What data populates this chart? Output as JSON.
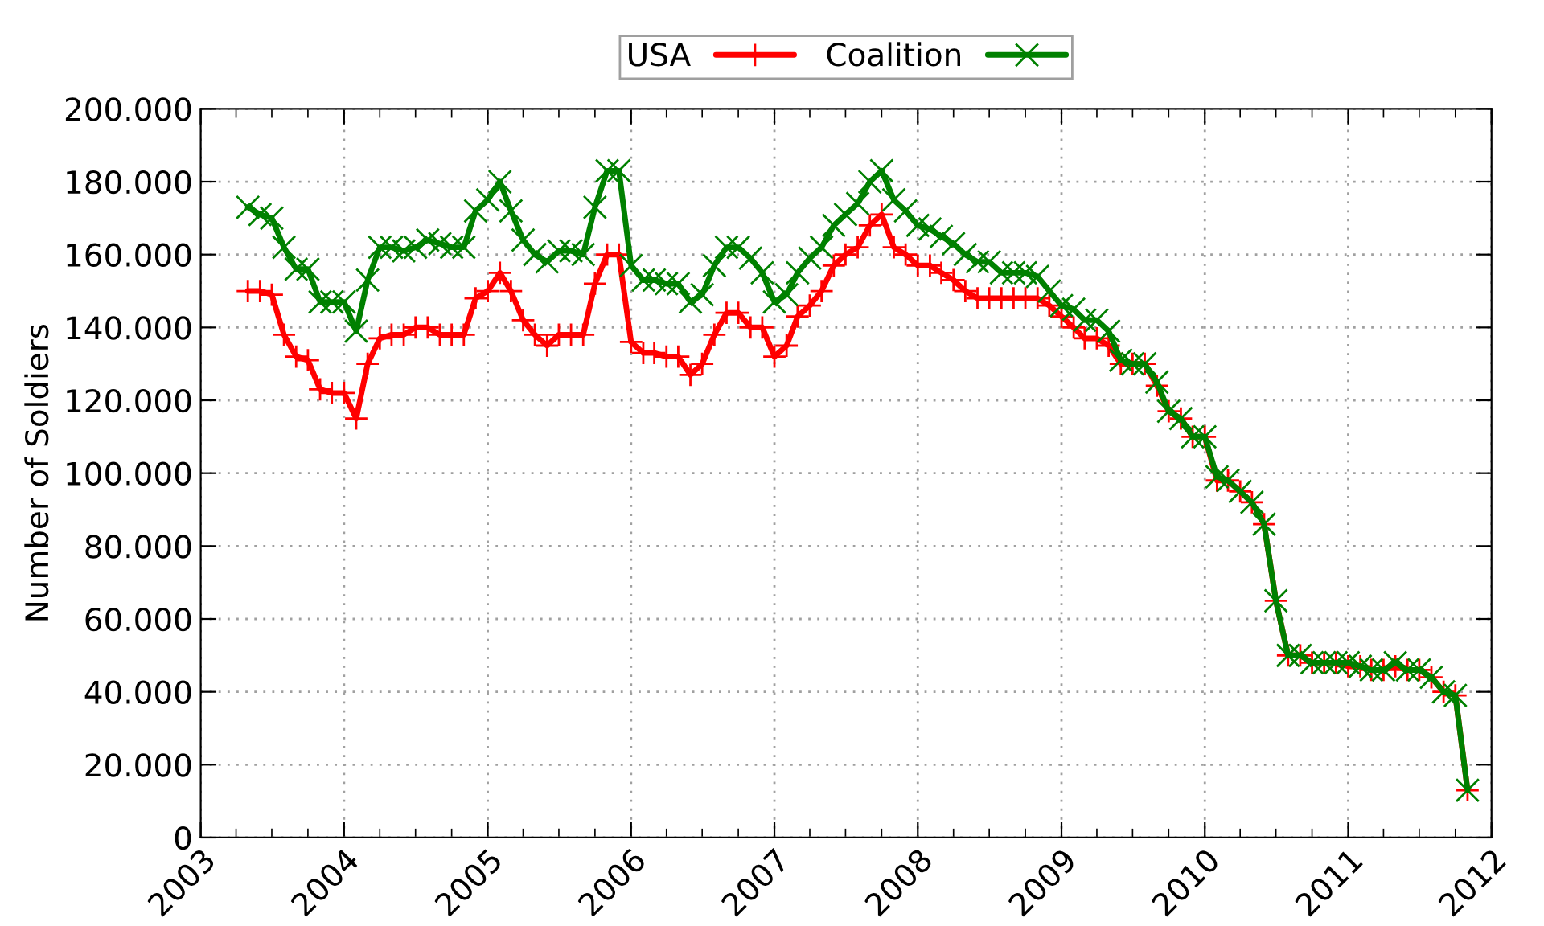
{
  "chart_data": {
    "type": "line",
    "ylabel": "Number of Soldiers",
    "x": [
      "2003-05",
      "2003-06",
      "2003-07",
      "2003-08",
      "2003-09",
      "2003-10",
      "2003-11",
      "2003-12",
      "2004-01",
      "2004-02",
      "2004-03",
      "2004-04",
      "2004-05",
      "2004-06",
      "2004-07",
      "2004-08",
      "2004-09",
      "2004-10",
      "2004-11",
      "2004-12",
      "2005-01",
      "2005-02",
      "2005-03",
      "2005-04",
      "2005-05",
      "2005-06",
      "2005-07",
      "2005-08",
      "2005-09",
      "2005-10",
      "2005-11",
      "2005-12",
      "2006-01",
      "2006-02",
      "2006-03",
      "2006-04",
      "2006-05",
      "2006-06",
      "2006-07",
      "2006-08",
      "2006-09",
      "2006-10",
      "2006-11",
      "2006-12",
      "2007-01",
      "2007-02",
      "2007-03",
      "2007-04",
      "2007-05",
      "2007-06",
      "2007-07",
      "2007-08",
      "2007-09",
      "2007-10",
      "2007-11",
      "2007-12",
      "2008-01",
      "2008-02",
      "2008-03",
      "2008-04",
      "2008-05",
      "2008-06",
      "2008-07",
      "2008-08",
      "2008-09",
      "2008-10",
      "2008-11",
      "2008-12",
      "2009-01",
      "2009-02",
      "2009-03",
      "2009-04",
      "2009-05",
      "2009-06",
      "2009-07",
      "2009-08",
      "2009-09",
      "2009-10",
      "2009-11",
      "2009-12",
      "2010-01",
      "2010-02",
      "2010-03",
      "2010-04",
      "2010-05",
      "2010-06",
      "2010-07",
      "2010-08",
      "2010-09",
      "2010-10",
      "2010-11",
      "2010-12",
      "2011-01",
      "2011-02",
      "2011-03",
      "2011-04",
      "2011-05",
      "2011-06",
      "2011-07",
      "2011-08",
      "2011-09",
      "2011-10",
      "2011-11"
    ],
    "series": [
      {
        "name": "USA",
        "color": "#ff0000",
        "marker": "plus",
        "values": [
          150000,
          150000,
          149000,
          138000,
          132000,
          131000,
          123000,
          122000,
          122000,
          115000,
          130000,
          137000,
          138000,
          138000,
          140000,
          140000,
          138000,
          138000,
          138000,
          148000,
          150000,
          155000,
          150000,
          142000,
          138000,
          135000,
          138000,
          138000,
          138000,
          152000,
          160000,
          160000,
          136000,
          133000,
          133000,
          132000,
          132000,
          127000,
          130000,
          138000,
          144000,
          144000,
          140000,
          140000,
          132000,
          135000,
          143000,
          146000,
          150000,
          157000,
          160000,
          162000,
          168000,
          171000,
          162000,
          160000,
          157000,
          157000,
          155000,
          153000,
          150000,
          148000,
          148000,
          148000,
          148000,
          148000,
          148000,
          146000,
          143000,
          140000,
          137000,
          137000,
          135000,
          130000,
          130000,
          130000,
          124000,
          117000,
          115000,
          110000,
          110000,
          98000,
          98000,
          95000,
          92000,
          86000,
          65000,
          50000,
          50000,
          48000,
          48000,
          48000,
          47000,
          47000,
          46000,
          46000,
          47000,
          46000,
          46000,
          44000,
          40000,
          39000,
          13000
        ]
      },
      {
        "name": "Coalition",
        "color": "#008000",
        "marker": "cross",
        "values": [
          173000,
          171000,
          170000,
          162000,
          156000,
          156000,
          147000,
          147000,
          147000,
          139000,
          153000,
          162000,
          162000,
          161000,
          162000,
          164000,
          163000,
          162000,
          162000,
          172000,
          175000,
          180000,
          172000,
          164000,
          160000,
          158000,
          161000,
          161000,
          160000,
          173000,
          183000,
          183000,
          157000,
          153000,
          153000,
          152000,
          152000,
          147000,
          149000,
          157000,
          162000,
          162000,
          159000,
          155000,
          147000,
          149000,
          155000,
          159000,
          162000,
          168000,
          171000,
          174000,
          180000,
          183000,
          175000,
          172000,
          168000,
          167000,
          165000,
          163000,
          160000,
          158000,
          158000,
          155000,
          155000,
          155000,
          154000,
          150000,
          146000,
          145000,
          142000,
          142000,
          139000,
          131000,
          130000,
          130000,
          125000,
          117000,
          115000,
          110000,
          110000,
          99000,
          98000,
          95000,
          92000,
          86000,
          65000,
          50000,
          50000,
          48000,
          48000,
          48000,
          48000,
          47000,
          46000,
          46000,
          48000,
          46000,
          46000,
          44000,
          40000,
          39000,
          13000
        ]
      }
    ],
    "xlim": [
      "2003",
      "2012"
    ],
    "xticks": [
      "2003",
      "2004",
      "2005",
      "2006",
      "2007",
      "2008",
      "2009",
      "2010",
      "2011",
      "2012"
    ],
    "ylim": [
      0,
      200000
    ],
    "yticks": [
      0,
      {
        "value": 20000,
        "label": "20.000"
      },
      {
        "value": 40000,
        "label": "40.000"
      },
      {
        "value": 60000,
        "label": "60.000"
      },
      {
        "value": 80000,
        "label": "80.000"
      },
      {
        "value": 100000,
        "label": "100.000"
      },
      {
        "value": 120000,
        "label": "120.000"
      },
      {
        "value": 140000,
        "label": "140.000"
      },
      {
        "value": 160000,
        "label": "160.000"
      },
      {
        "value": 180000,
        "label": "180.000"
      },
      {
        "value": 200000,
        "label": "200.000"
      }
    ],
    "grid": true,
    "legend": "top",
    "line_style": "solid"
  }
}
